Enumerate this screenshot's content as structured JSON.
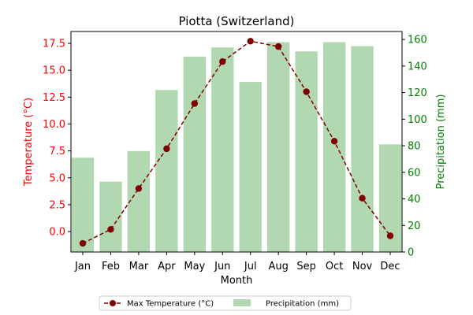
{
  "chart_data": {
    "type": "bar+line",
    "title": "Piotta (Switzerland)",
    "xlabel": "Month",
    "ylabel_left": "Temperature (°C)",
    "ylabel_right": "Precipitation (mm)",
    "categories": [
      "Jan",
      "Feb",
      "Mar",
      "Apr",
      "May",
      "Jun",
      "Jul",
      "Aug",
      "Sep",
      "Oct",
      "Nov",
      "Dec"
    ],
    "series": [
      {
        "name": "Max Temperature (°C)",
        "type": "line",
        "axis": "left",
        "values": [
          -1.1,
          0.2,
          4.0,
          7.7,
          11.9,
          15.8,
          17.7,
          17.2,
          13.0,
          8.4,
          3.1,
          -0.4
        ]
      },
      {
        "name": "Precipitation (mm)",
        "type": "bar",
        "axis": "right",
        "values": [
          71,
          53,
          76,
          122,
          147,
          154,
          128,
          158,
          151,
          158,
          155,
          81
        ]
      }
    ],
    "ylim_left": [
      -1.9,
      18.6
    ],
    "yticks_left": [
      0.0,
      2.5,
      5.0,
      7.5,
      10.0,
      12.5,
      15.0,
      17.5
    ],
    "ylim_right": [
      0,
      166
    ],
    "yticks_right": [
      0,
      20,
      40,
      60,
      80,
      100,
      120,
      140,
      160
    ],
    "legend_position": "bottom-center",
    "grid": false,
    "colors": {
      "line": "#800000",
      "bar": "#b2d8b2",
      "left_axis": "#ff0000",
      "right_axis": "#008000"
    }
  }
}
